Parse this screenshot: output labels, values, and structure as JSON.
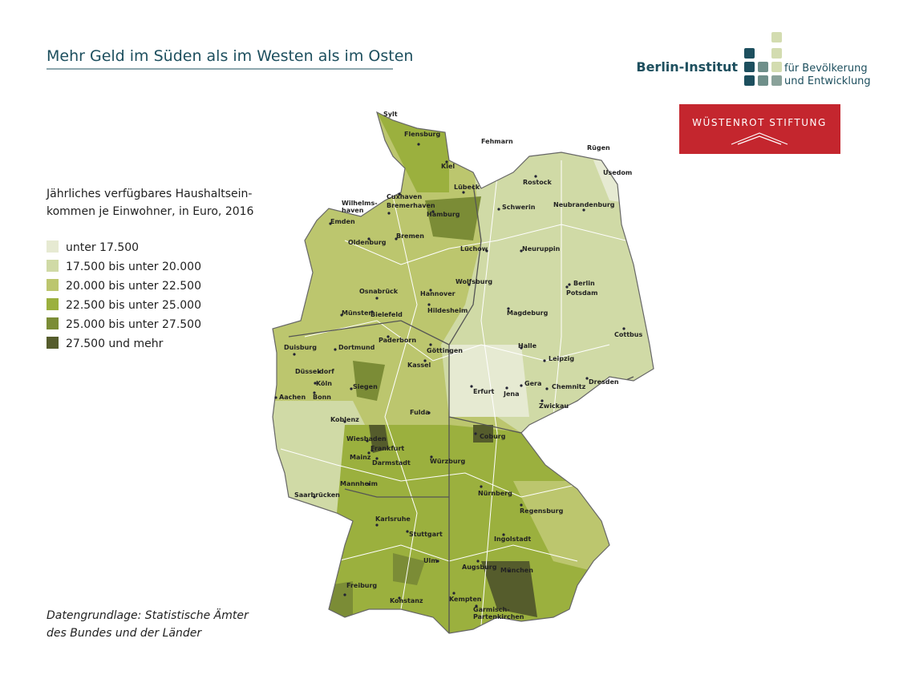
{
  "header": {
    "title": "Mehr Geld im Süden als im Westen als im Osten"
  },
  "logos": {
    "berlin_institut": "Berlin-Institut",
    "berlin_institut_sub": [
      "für Bevölkerung",
      "und Entwicklung"
    ],
    "wuestenrot": "WÜSTENROT STIFTUNG"
  },
  "legend": {
    "title": [
      "Jährliches verfügbares Haushaltsein-",
      "kommen je Einwohner, in Euro, 2016"
    ],
    "items": [
      {
        "label": "unter 17.500",
        "color": "#e6ead2"
      },
      {
        "label": "17.500 bis unter 20.000",
        "color": "#d0daa6"
      },
      {
        "label": "20.000 bis unter 22.500",
        "color": "#bcc66e"
      },
      {
        "label": "22.500 bis unter 25.000",
        "color": "#9bb03e"
      },
      {
        "label": "25.000 bis unter 27.500",
        "color": "#7b8c36"
      },
      {
        "label": "27.500 und mehr",
        "color": "#555c2c"
      }
    ]
  },
  "source": [
    "Datengrundlage: Statistische Ämter",
    "des Bundes und der Länder"
  ],
  "cities": [
    [
      "Sylt"
    ],
    [
      "Flensburg"
    ],
    [
      "Fehmarn"
    ],
    [
      "Rügen"
    ],
    [
      "Usedom"
    ],
    [
      "Kiel"
    ],
    [
      "Rostock"
    ],
    [
      "Lübeck"
    ],
    [
      "Cuxhaven"
    ],
    [
      "Wilhelms-",
      "haven"
    ],
    [
      "Bremerhaven"
    ],
    [
      "Schwerin"
    ],
    [
      "Neubrandenburg"
    ],
    [
      "Hamburg"
    ],
    [
      "Emden"
    ],
    [
      "Bremen"
    ],
    [
      "Oldenburg"
    ],
    [
      "Lüchow"
    ],
    [
      "Neuruppin"
    ],
    [
      "Berlin"
    ],
    [
      "Wolfsburg"
    ],
    [
      "Osnabrück"
    ],
    [
      "Hannover"
    ],
    [
      "Potsdam"
    ],
    [
      "Münster"
    ],
    [
      "Bielefeld"
    ],
    [
      "Hildesheim"
    ],
    [
      "Magdeburg"
    ],
    [
      "Cottbus"
    ],
    [
      "Duisburg"
    ],
    [
      "Dortmund"
    ],
    [
      "Paderborn"
    ],
    [
      "Göttingen"
    ],
    [
      "Halle"
    ],
    [
      "Leipzig"
    ],
    [
      "Kassel"
    ],
    [
      "Düsseldorf"
    ],
    [
      "Köln"
    ],
    [
      "Siegen"
    ],
    [
      "Gera"
    ],
    [
      "Chemnitz"
    ],
    [
      "Dresden"
    ],
    [
      "Aachen"
    ],
    [
      "Bonn"
    ],
    [
      "Erfurt"
    ],
    [
      "Jena"
    ],
    [
      "Zwickau"
    ],
    [
      "Fulda"
    ],
    [
      "Koblenz"
    ],
    [
      "Coburg"
    ],
    [
      "Wiesbaden"
    ],
    [
      "Frankfurt"
    ],
    [
      "Mainz"
    ],
    [
      "Darmstadt"
    ],
    [
      "Würzburg"
    ],
    [
      "Mannheim"
    ],
    [
      "Nürnberg"
    ],
    [
      "Saarbrücken"
    ],
    [
      "Regensburg"
    ],
    [
      "Karlsruhe"
    ],
    [
      "Stuttgart"
    ],
    [
      "Ingolstadt"
    ],
    [
      "Ulm"
    ],
    [
      "Augsburg"
    ],
    [
      "München"
    ],
    [
      "Freiburg"
    ],
    [
      "Konstanz"
    ],
    [
      "Kempten"
    ],
    [
      "Garmisch-",
      "Partenkirchen"
    ]
  ]
}
